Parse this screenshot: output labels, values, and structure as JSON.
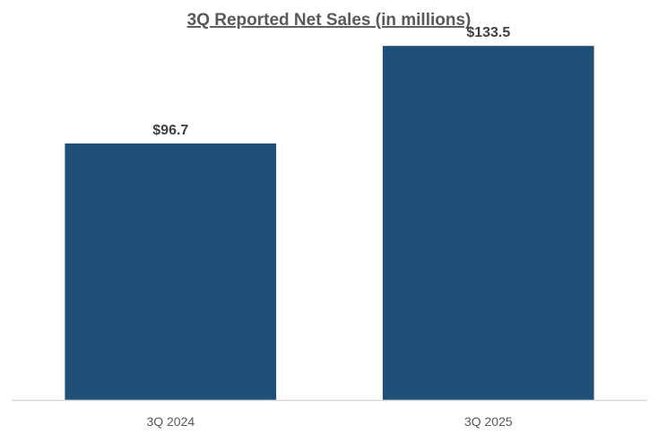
{
  "chart_data": {
    "type": "bar",
    "title": "3Q Reported Net Sales (in millions)",
    "xlabel": "",
    "ylabel": "",
    "categories": [
      "3Q 2024",
      "3Q 2025"
    ],
    "values": [
      96.7,
      133.5
    ],
    "data_labels": [
      "$96.7",
      "$133.5"
    ],
    "ylim": [
      0,
      140
    ],
    "grid": false,
    "legend": "none",
    "bar_color": "#1f4e79",
    "axis_color": "#d9d9d9"
  }
}
